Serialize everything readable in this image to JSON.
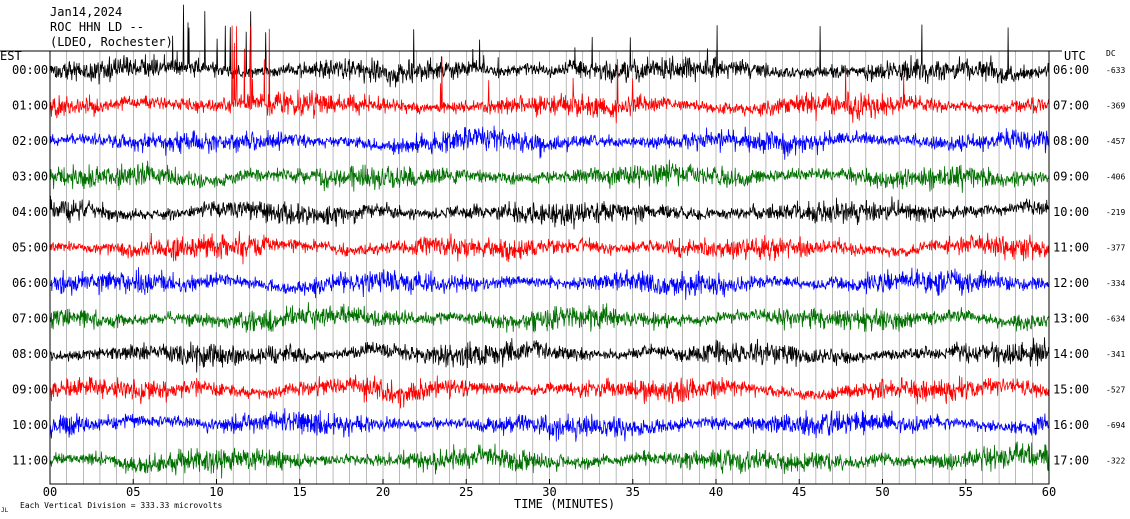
{
  "header": {
    "date": "Jan14,2024",
    "station": "ROC HHN LD --",
    "network": "(LDEO, Rochester)"
  },
  "labels": {
    "left_timezone": "EST",
    "right_timezone": "UTC",
    "dc_header": "DC",
    "footer_scale": "Each Vertical Division =  333.33 microvolts",
    "footer_mark": "JL"
  },
  "chart_data": {
    "type": "line",
    "title": "",
    "xlabel": "TIME (MINUTES)",
    "ylabel": "",
    "xlim": [
      0,
      60
    ],
    "x_ticks": [
      "00",
      "05",
      "10",
      "15",
      "20",
      "25",
      "30",
      "35",
      "40",
      "45",
      "50",
      "55",
      "60"
    ],
    "grid": true,
    "legend": "none",
    "colors": [
      "#000000",
      "#ff0000",
      "#0000ff",
      "#007000"
    ],
    "rows": [
      {
        "est": "00:00",
        "utc": "06:00",
        "dc": "-633"
      },
      {
        "est": "01:00",
        "utc": "07:00",
        "dc": "-369"
      },
      {
        "est": "02:00",
        "utc": "08:00",
        "dc": "-457"
      },
      {
        "est": "03:00",
        "utc": "09:00",
        "dc": "-406"
      },
      {
        "est": "04:00",
        "utc": "10:00",
        "dc": "-219"
      },
      {
        "est": "05:00",
        "utc": "11:00",
        "dc": "-377"
      },
      {
        "est": "06:00",
        "utc": "12:00",
        "dc": "-334"
      },
      {
        "est": "07:00",
        "utc": "13:00",
        "dc": "-634"
      },
      {
        "est": "08:00",
        "utc": "14:00",
        "dc": "-341"
      },
      {
        "est": "09:00",
        "utc": "15:00",
        "dc": "-527"
      },
      {
        "est": "10:00",
        "utc": "16:00",
        "dc": "-694"
      },
      {
        "est": "11:00",
        "utc": "17:00",
        "dc": "-322"
      }
    ]
  }
}
